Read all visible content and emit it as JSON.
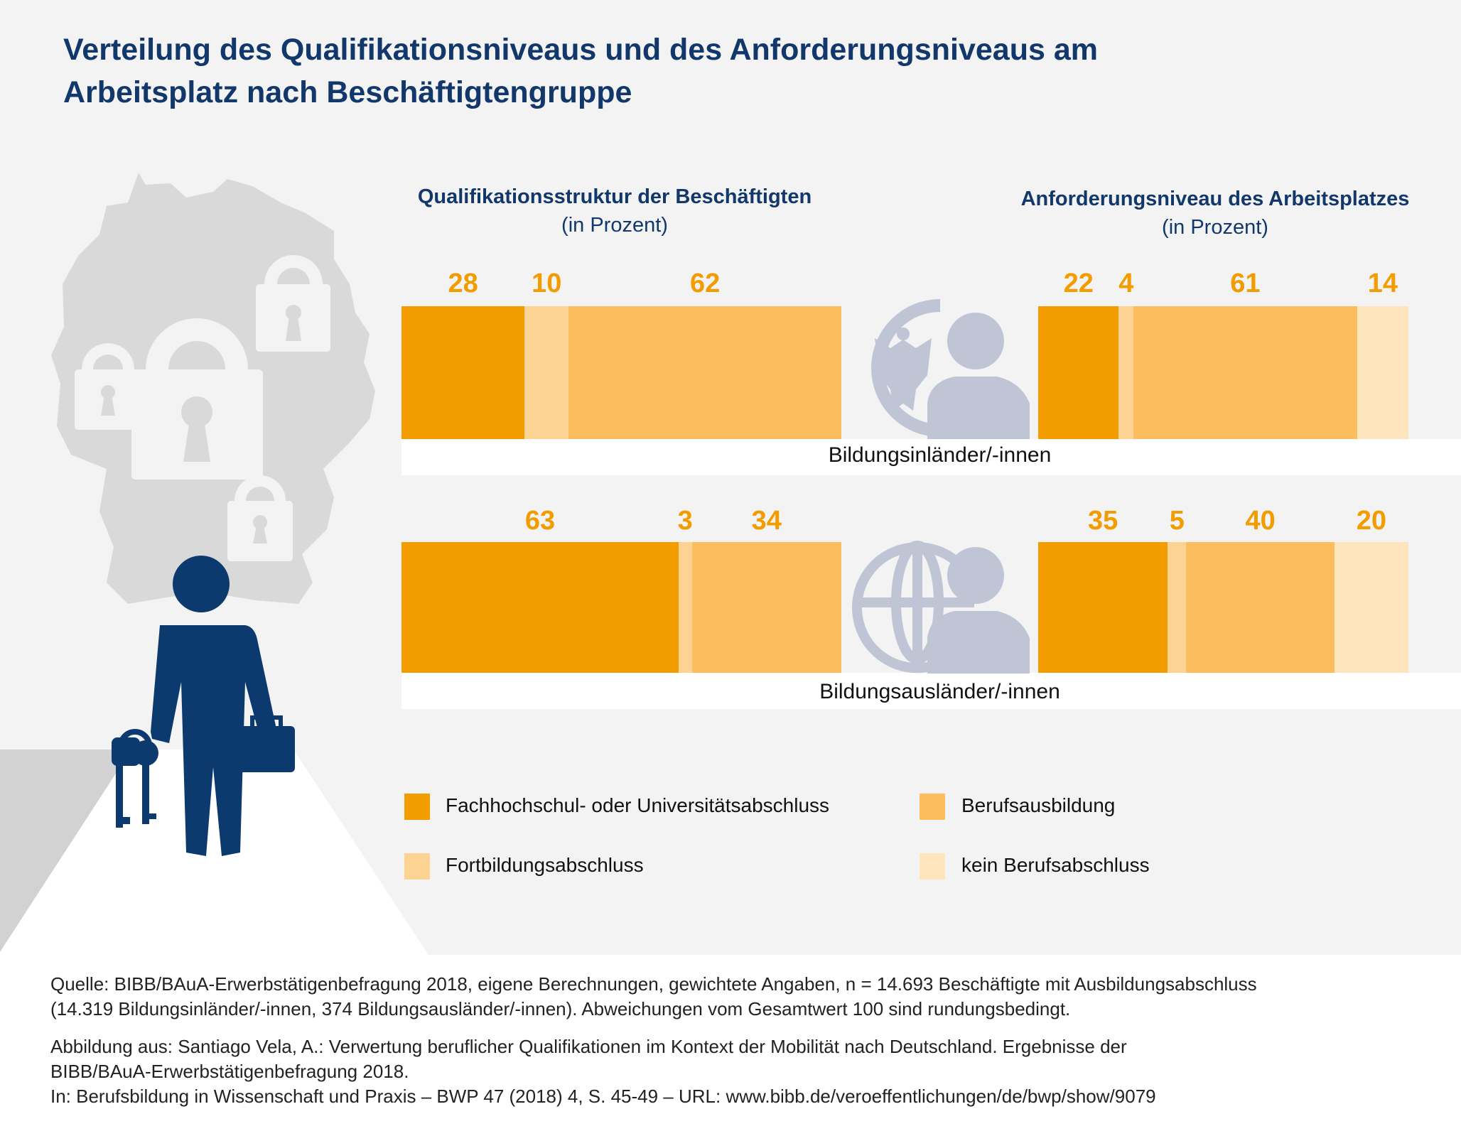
{
  "title_line1": "Verteilung des Qualifikationsniveaus und des Anforderungsniveaus am",
  "title_line2": "Arbeitsplatz nach Beschäftigtengruppe",
  "colors": {
    "Fachhochschul- oder Universitätsabschluss": "#f39c00",
    "Fortbildungsabschluss": "#fdd394",
    "Berufsausbildung": "#fbbd5e",
    "kein Berufsabschluss": "#fde4bd",
    "title": "#12386b",
    "icon": "#c0c5d6"
  },
  "icons": [
    "germany-map",
    "lock-icon",
    "person-with-keys-and-bag",
    "eagle-person-icon",
    "globe-person-icon"
  ],
  "chart_data": {
    "type": "bar",
    "orientation": "horizontal-stacked",
    "unit": "Prozent",
    "panels": [
      {
        "title": "Qualifikationsstruktur der Beschäftigten",
        "subtitle": "(in Prozent)"
      },
      {
        "title": "Anforderungsniveau des Arbeitsplatzes",
        "subtitle": "(in Prozent)"
      }
    ],
    "categories": [
      "Bildungsinländer/-innen",
      "Bildungsausländer/-innen"
    ],
    "series_order": [
      "Fachhochschul- oder Universitätsabschluss",
      "Fortbildungsabschluss",
      "Berufsausbildung",
      "kein Berufsabschluss"
    ],
    "data": [
      {
        "category": "Bildungsinländer/-innen",
        "qualifikation": [
          28,
          10,
          62
        ],
        "anforderung": [
          22,
          4,
          61,
          14
        ]
      },
      {
        "category": "Bildungsausländer/-innen",
        "qualifikation": [
          63,
          3,
          34
        ],
        "anforderung": [
          35,
          5,
          40,
          20
        ]
      }
    ],
    "legend": [
      "Fachhochschul- oder Universitätsabschluss",
      "Berufsausbildung",
      "Fortbildungsabschluss",
      "kein Berufsabschluss"
    ],
    "legend_placement": "bottom"
  },
  "footer": {
    "line1": "Quelle: BIBB/BAuA-Erwerbstätigenbefragung 2018, eigene Berechnungen, gewichtete Angaben, n = 14.693 Beschäftigte mit Ausbildungsabschluss",
    "line2": "(14.319 Bildungsinländer/-innen, 374 Bildungsausländer/-innen). Abweichungen vom Gesamtwert 100 sind rundungsbedingt.",
    "line3": "Abbildung aus: Santiago Vela, A.: Verwertung beruflicher Qualifikationen im Kontext der Mobilität nach Deutschland. Ergebnisse der",
    "line4": "BIBB/BAuA-Erwerbstätigenbefragung 2018.",
    "line5": "In: Berufsbildung in Wissenschaft und Praxis – BWP 47 (2018) 4, S. 45-49 – URL: www.bibb.de/veroeffentlichungen/de/bwp/show/9079"
  }
}
